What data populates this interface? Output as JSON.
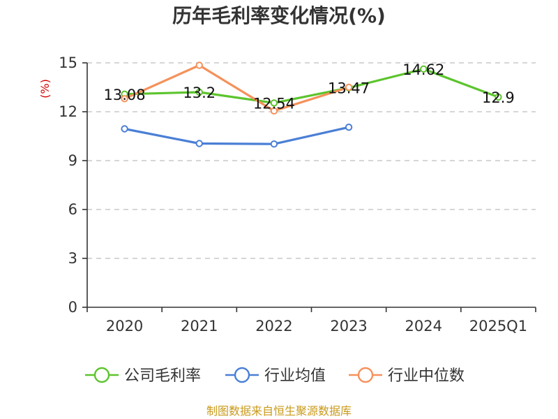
{
  "chart_data": {
    "type": "line",
    "title": "历年毛利率变化情况(%)",
    "unit_label": "(%)",
    "categories": [
      "2020",
      "2021",
      "2022",
      "2023",
      "2024",
      "2025Q1"
    ],
    "y_ticks": [
      "0",
      "3",
      "6",
      "9",
      "12",
      "15"
    ],
    "ylim": [
      0,
      15
    ],
    "grid": true,
    "legend_position": "bottom",
    "series": [
      {
        "name": "公司毛利率",
        "color": "#5cc42d",
        "values": [
          13.08,
          13.2,
          12.54,
          13.47,
          14.62,
          12.9
        ],
        "labels": [
          "13.08",
          "13.2",
          "12.54",
          "13.47",
          "14.62",
          "12.9"
        ]
      },
      {
        "name": "行业均值",
        "color": "#4a7fd6",
        "values": [
          10.95,
          10.05,
          10.02,
          11.05,
          null,
          null
        ]
      },
      {
        "name": "行业中位数",
        "color": "#f5915a",
        "values": [
          12.8,
          14.85,
          12.05,
          13.5,
          null,
          null
        ]
      }
    ]
  },
  "source": "制图数据来自恒生聚源数据库"
}
